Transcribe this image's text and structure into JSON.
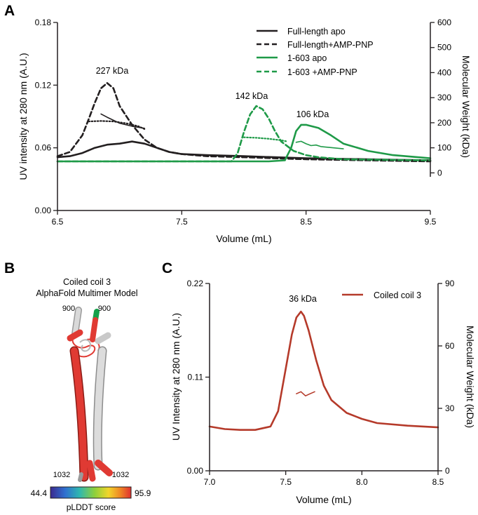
{
  "panel_labels": {
    "a": "A",
    "b": "B",
    "c": "C"
  },
  "colors": {
    "black": "#231f20",
    "green": "#1f9a48",
    "red": "#b53a2a"
  },
  "chart_data": [
    {
      "id": "A",
      "type": "line",
      "xlabel": "Volume (mL)",
      "ylabel": "UV intensity at 280 nm (A.U.)",
      "y2label": "Molecular Weight (kDa)",
      "xlim": [
        6.5,
        9.5
      ],
      "ylim": [
        0,
        0.18
      ],
      "y2lim": [
        -150,
        600
      ],
      "xticks": [
        "6.5",
        "7.5",
        "8.5",
        "9.5"
      ],
      "xtick_values": [
        6.5,
        7.5,
        8.5,
        9.5
      ],
      "yticks": [
        "0.00",
        "0.06",
        "0.12",
        "0.18"
      ],
      "ytick_values": [
        0,
        0.06,
        0.12,
        0.18
      ],
      "y2ticks": [
        "0",
        "100",
        "200",
        "300",
        "400",
        "500",
        "600"
      ],
      "y2tick_values": [
        0,
        100,
        200,
        300,
        400,
        500,
        600
      ],
      "legend_position": "top-right",
      "series": [
        {
          "name": "Full-length apo",
          "color": "#231f20",
          "dash": "solid",
          "x": [
            6.5,
            6.6,
            6.7,
            6.8,
            6.9,
            7.0,
            7.1,
            7.2,
            7.3,
            7.4,
            7.5,
            7.7,
            8.0,
            8.5,
            9.0,
            9.5
          ],
          "y": [
            0.051,
            0.052,
            0.055,
            0.06,
            0.063,
            0.064,
            0.066,
            0.064,
            0.06,
            0.056,
            0.054,
            0.053,
            0.052,
            0.05,
            0.049,
            0.048
          ]
        },
        {
          "name": "Full-length+AMP-PNP",
          "color": "#231f20",
          "dash": "dashed",
          "x": [
            6.5,
            6.6,
            6.7,
            6.75,
            6.8,
            6.85,
            6.9,
            6.95,
            7.0,
            7.1,
            7.2,
            7.3,
            7.4,
            7.5,
            7.7,
            8.0,
            8.5,
            9.0,
            9.5
          ],
          "y": [
            0.052,
            0.056,
            0.072,
            0.087,
            0.103,
            0.117,
            0.122,
            0.117,
            0.1,
            0.082,
            0.068,
            0.06,
            0.056,
            0.054,
            0.052,
            0.051,
            0.049,
            0.048,
            0.047
          ]
        },
        {
          "name": "1-603 apo",
          "color": "#1f9a48",
          "dash": "solid",
          "x": [
            6.5,
            7.5,
            8.2,
            8.33,
            8.38,
            8.42,
            8.46,
            8.5,
            8.6,
            8.7,
            8.8,
            9.0,
            9.2,
            9.5
          ],
          "y": [
            0.047,
            0.047,
            0.047,
            0.048,
            0.06,
            0.076,
            0.082,
            0.082,
            0.079,
            0.072,
            0.064,
            0.057,
            0.053,
            0.05
          ]
        },
        {
          "name": "1-603 +AMP-PNP",
          "color": "#1f9a48",
          "dash": "dashed",
          "x": [
            6.5,
            7.5,
            7.9,
            7.95,
            8.0,
            8.05,
            8.1,
            8.15,
            8.2,
            8.25,
            8.3,
            8.4,
            8.5,
            8.6,
            8.8,
            9.5
          ],
          "y": [
            0.047,
            0.047,
            0.047,
            0.055,
            0.075,
            0.092,
            0.1,
            0.097,
            0.088,
            0.076,
            0.066,
            0.057,
            0.053,
            0.051,
            0.049,
            0.048
          ]
        }
      ],
      "mw_traces": [
        {
          "name": "Full-length apo MW",
          "color": "#231f20",
          "dash": "solid",
          "x": [
            6.85,
            6.9,
            6.95,
            7.0,
            7.1,
            7.2
          ],
          "y": [
            235,
            222,
            210,
            198,
            186,
            178
          ]
        },
        {
          "name": "Full-length+AMP-PNP MW",
          "color": "#231f20",
          "dash": "dotted",
          "x": [
            6.75,
            6.85,
            6.95,
            7.05,
            7.15,
            7.2
          ],
          "y": [
            205,
            207,
            205,
            198,
            186,
            175
          ]
        },
        {
          "name": "1-603 +AMP-PNP MW",
          "color": "#1f9a48",
          "dash": "dotted",
          "x": [
            8.0,
            8.1,
            8.2,
            8.3,
            8.35
          ],
          "y": [
            142,
            140,
            136,
            130,
            125
          ]
        },
        {
          "name": "1-603 apo MW",
          "color": "#1f9a48",
          "dash": "solid",
          "x": [
            8.42,
            8.46,
            8.5,
            8.54,
            8.58,
            8.62,
            8.7,
            8.8
          ],
          "y": [
            122,
            126,
            116,
            109,
            111,
            105,
            101,
            96
          ]
        }
      ],
      "annotations": [
        {
          "text": "227 kDa",
          "x": 6.9,
          "y": 0.133
        },
        {
          "text": "142 kDa",
          "x": 8.1,
          "y": 0.107
        },
        {
          "text": "106 kDa",
          "x": 8.5,
          "y": 0.088
        }
      ]
    },
    {
      "id": "C",
      "type": "line",
      "xlabel": "Volume (mL)",
      "ylabel": "UV Intensity at 280 nm (A.U.)",
      "y2label": "Molecular Weight (kDa)",
      "xlim": [
        7.0,
        8.5
      ],
      "ylim": [
        0,
        0.22
      ],
      "y2lim": [
        0,
        90
      ],
      "xticks": [
        "7.0",
        "7.5",
        "8.0",
        "8.5"
      ],
      "xtick_values": [
        7.0,
        7.5,
        8.0,
        8.5
      ],
      "yticks": [
        "0.00",
        "0.11",
        "0.22"
      ],
      "ytick_values": [
        0,
        0.11,
        0.22
      ],
      "y2ticks": [
        "0",
        "30",
        "60",
        "90"
      ],
      "y2tick_values": [
        0,
        30,
        60,
        90
      ],
      "legend_position": "top-right",
      "series": [
        {
          "name": "Coiled coil 3",
          "color": "#b53a2a",
          "dash": "solid",
          "x": [
            7.0,
            7.1,
            7.2,
            7.3,
            7.4,
            7.45,
            7.5,
            7.54,
            7.57,
            7.6,
            7.62,
            7.65,
            7.7,
            7.75,
            7.8,
            7.9,
            8.0,
            8.1,
            8.3,
            8.5
          ],
          "y": [
            0.052,
            0.049,
            0.048,
            0.048,
            0.052,
            0.07,
            0.12,
            0.16,
            0.18,
            0.187,
            0.182,
            0.165,
            0.13,
            0.1,
            0.083,
            0.068,
            0.061,
            0.056,
            0.053,
            0.051
          ]
        }
      ],
      "mw_traces": [
        {
          "name": "Coiled coil 3 MW",
          "color": "#b53a2a",
          "dash": "solid",
          "x": [
            7.57,
            7.6,
            7.63,
            7.66,
            7.69
          ],
          "y": [
            37,
            38,
            36,
            37,
            38
          ]
        }
      ],
      "annotations": [
        {
          "text": "36 kDa",
          "x": 7.58,
          "y": 0.196
        }
      ]
    }
  ],
  "structure": {
    "title_line1": "Coiled coil 3",
    "title_line2": "AlphaFold Multimer Model",
    "labels": [
      "900",
      "900",
      "1032",
      "1032"
    ],
    "colorbar_min": "44.4",
    "colorbar_max": "95.9",
    "colorbar_label": "pLDDT score"
  }
}
